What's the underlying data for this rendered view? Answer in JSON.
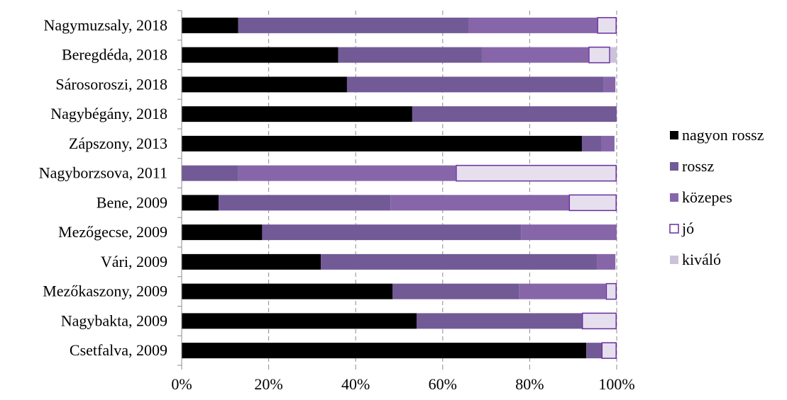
{
  "chart_data": {
    "type": "bar",
    "orientation": "horizontal",
    "stacked": "percent",
    "title": "",
    "xlabel": "",
    "ylabel": "",
    "xlim": [
      0,
      100
    ],
    "x_ticks": [
      "0%",
      "20%",
      "40%",
      "60%",
      "80%",
      "100%"
    ],
    "grid": "vertical dashed",
    "legend_position": "right",
    "categories": [
      "Nagymuzsaly, 2018",
      "Beregdéda, 2018",
      "Sárosoroszi, 2018",
      "Nagybégány, 2018",
      "Zápszony, 2013",
      "Nagyborzsova, 2011",
      "Bene, 2009",
      "Mezőgecse, 2009",
      "Vári, 2009",
      "Mezőkaszony, 2009",
      "Nagybakta, 2009",
      "Csetfalva, 2009"
    ],
    "series": [
      {
        "name": "nagyon rossz",
        "color": "#000000",
        "values": [
          13,
          36,
          38,
          53,
          92,
          0,
          8.5,
          18.5,
          32,
          48.5,
          54,
          93
        ]
      },
      {
        "name": "rossz",
        "color": "#725a96",
        "values": [
          53,
          33,
          59,
          47,
          4.5,
          13,
          39.5,
          59.5,
          63.5,
          29,
          38,
          3.5
        ]
      },
      {
        "name": "közepes",
        "color": "#8666a9",
        "values": [
          29.5,
          24.5,
          2.7,
          0,
          3,
          50,
          41,
          22,
          4.2,
          20,
          0,
          0
        ]
      },
      {
        "name": "jó",
        "color": "#e6e0ee",
        "border": "#6a2da0",
        "values": [
          4.5,
          5,
          0,
          0,
          0,
          37,
          11,
          0,
          0,
          2.5,
          8,
          3.5
        ]
      },
      {
        "name": "kiváló",
        "color": "#cbc3da",
        "values": [
          0,
          1.5,
          0,
          0,
          0,
          0,
          0,
          0,
          0,
          0,
          0,
          0
        ]
      }
    ]
  }
}
